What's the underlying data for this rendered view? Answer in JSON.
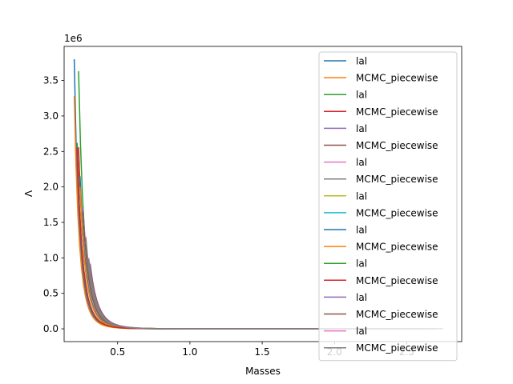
{
  "chart_data": {
    "type": "line",
    "title": "",
    "xlabel": "Masses",
    "ylabel": "Λ",
    "y_offset_label": "1e6",
    "y_scale_factor": 1000000,
    "xlim": [
      0.13,
      2.88
    ],
    "ylim": [
      -180000,
      3980000
    ],
    "x_ticks": [
      0.5,
      1.0,
      1.5,
      2.0,
      2.5
    ],
    "x_tick_labels": [
      "0.5",
      "1.0",
      "1.5",
      "2.0",
      "2.5"
    ],
    "y_ticks": [
      0,
      500000,
      1000000,
      1500000,
      2000000,
      2500000,
      3000000,
      3500000
    ],
    "y_tick_labels": [
      "0.0",
      "0.5",
      "1.0",
      "1.5",
      "2.0",
      "2.5",
      "3.0",
      "3.5"
    ],
    "grid": false,
    "legend_position": "right",
    "series": [
      {
        "name": "lal",
        "color": "#1f77b4",
        "x_start": 0.2,
        "x_end": 2.2,
        "y_start": 3800000
      },
      {
        "name": "MCMC_piecewise",
        "color": "#ff7f0e",
        "x_start": 0.2,
        "x_end": 2.2,
        "y_start": 3280000
      },
      {
        "name": "lal",
        "color": "#2ca02c",
        "x_start": 0.23,
        "x_end": 2.3,
        "y_start": 3630000
      },
      {
        "name": "MCMC_piecewise",
        "color": "#d62728",
        "x_start": 0.23,
        "x_end": 2.3,
        "y_start": 2560000
      },
      {
        "name": "lal",
        "color": "#9467bd",
        "x_start": 0.26,
        "x_end": 2.4,
        "y_start": 1710000
      },
      {
        "name": "MCMC_piecewise",
        "color": "#8c564b",
        "x_start": 0.26,
        "x_end": 2.4,
        "y_start": 1650000
      },
      {
        "name": "lal",
        "color": "#e377c2",
        "x_start": 0.28,
        "x_end": 2.5,
        "y_start": 1300000
      },
      {
        "name": "MCMC_piecewise",
        "color": "#7f7f7f",
        "x_start": 0.28,
        "x_end": 2.5,
        "y_start": 1280000
      },
      {
        "name": "lal",
        "color": "#bcbd22",
        "x_start": 0.25,
        "x_end": 2.55,
        "y_start": 1750000
      },
      {
        "name": "MCMC_piecewise",
        "color": "#17becf",
        "x_start": 0.25,
        "x_end": 2.55,
        "y_start": 1700000
      },
      {
        "name": "lal",
        "color": "#1f77b4",
        "x_start": 0.24,
        "x_end": 2.6,
        "y_start": 2150000
      },
      {
        "name": "MCMC_piecewise",
        "color": "#ff7f0e",
        "x_start": 0.24,
        "x_end": 2.6,
        "y_start": 2000000
      },
      {
        "name": "lal",
        "color": "#2ca02c",
        "x_start": 0.22,
        "x_end": 2.65,
        "y_start": 2620000
      },
      {
        "name": "MCMC_piecewise",
        "color": "#d62728",
        "x_start": 0.22,
        "x_end": 2.65,
        "y_start": 2550000
      },
      {
        "name": "lal",
        "color": "#9467bd",
        "x_start": 0.31,
        "x_end": 2.7,
        "y_start": 920000
      },
      {
        "name": "MCMC_piecewise",
        "color": "#8c564b",
        "x_start": 0.31,
        "x_end": 2.7,
        "y_start": 900000
      },
      {
        "name": "lal",
        "color": "#e377c2",
        "x_start": 0.3,
        "x_end": 2.75,
        "y_start": 1000000
      },
      {
        "name": "MCMC_piecewise",
        "color": "#7f7f7f",
        "x_start": 0.3,
        "x_end": 2.75,
        "y_start": 980000
      }
    ]
  }
}
